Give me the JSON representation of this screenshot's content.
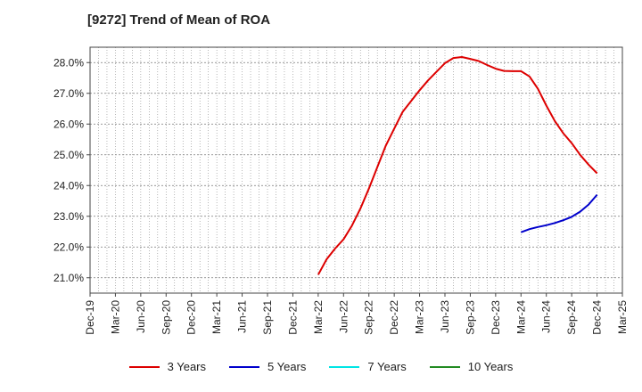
{
  "chart_data": {
    "type": "line",
    "title": "[9272]  Trend of Mean of ROA",
    "xlabel": "",
    "ylabel": "",
    "x_ticks": [
      "Dec-19",
      "Mar-20",
      "Jun-20",
      "Sep-20",
      "Dec-20",
      "Mar-21",
      "Jun-21",
      "Sep-21",
      "Dec-21",
      "Mar-22",
      "Jun-22",
      "Sep-22",
      "Dec-22",
      "Mar-23",
      "Jun-23",
      "Sep-23",
      "Dec-23",
      "Mar-24",
      "Jun-24",
      "Sep-24",
      "Dec-24",
      "Mar-25"
    ],
    "y_ticks": [
      "21.0%",
      "22.0%",
      "23.0%",
      "24.0%",
      "25.0%",
      "26.0%",
      "27.0%",
      "28.0%"
    ],
    "ylim": [
      20.5,
      28.5
    ],
    "grid": true,
    "legend_position": "bottom",
    "series": [
      {
        "name": "3 Years",
        "color": "#dd0000",
        "x": [
          "Mar-22",
          "Apr-22",
          "May-22",
          "Jun-22",
          "Jul-22",
          "Aug-22",
          "Sep-22",
          "Oct-22",
          "Nov-22",
          "Dec-22",
          "Jan-23",
          "Feb-23",
          "Mar-23",
          "Apr-23",
          "May-23",
          "Jun-23",
          "Jul-23",
          "Aug-23",
          "Sep-23",
          "Oct-23",
          "Nov-23",
          "Dec-23",
          "Jan-24",
          "Feb-24",
          "Mar-24",
          "Apr-24",
          "May-24",
          "Jun-24",
          "Jul-24",
          "Aug-24",
          "Sep-24",
          "Oct-24",
          "Nov-24",
          "Dec-24"
        ],
        "values": [
          21.1,
          21.6,
          21.95,
          22.25,
          22.7,
          23.25,
          23.9,
          24.6,
          25.3,
          25.85,
          26.4,
          26.75,
          27.1,
          27.42,
          27.7,
          27.98,
          28.15,
          28.18,
          28.12,
          28.05,
          27.92,
          27.8,
          27.73,
          27.72,
          27.72,
          27.55,
          27.15,
          26.6,
          26.1,
          25.7,
          25.38,
          25.0,
          24.68,
          24.4
        ]
      },
      {
        "name": "5 Years",
        "color": "#0000cc",
        "x": [
          "Mar-24",
          "Apr-24",
          "May-24",
          "Jun-24",
          "Jul-24",
          "Aug-24",
          "Sep-24",
          "Oct-24",
          "Nov-24",
          "Dec-24"
        ],
        "values": [
          22.48,
          22.58,
          22.65,
          22.71,
          22.78,
          22.87,
          22.98,
          23.15,
          23.38,
          23.7
        ]
      },
      {
        "name": "7 Years",
        "color": "#00e5e5",
        "x": [],
        "values": []
      },
      {
        "name": "10 Years",
        "color": "#228b22",
        "x": [],
        "values": []
      }
    ]
  }
}
